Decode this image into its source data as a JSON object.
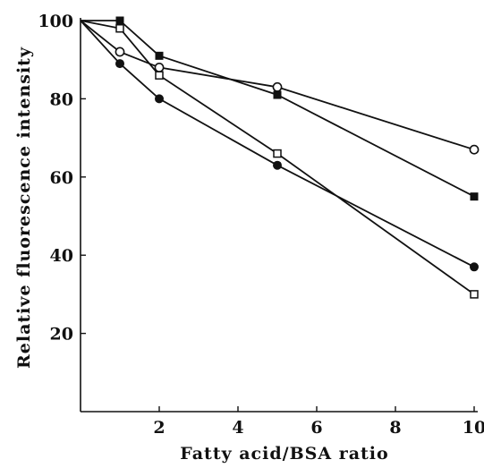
{
  "chart_data": {
    "type": "line",
    "title": "",
    "xlabel": "Fatty acid/BSA ratio",
    "ylabel": "Relative fluorescence intensity",
    "xlim": [
      0,
      10
    ],
    "ylim": [
      0,
      100
    ],
    "xticks": [
      2,
      4,
      6,
      8,
      10
    ],
    "yticks": [
      20,
      40,
      60,
      80,
      100
    ],
    "xtick_labels": [
      "2",
      "4",
      "6",
      "8",
      "10"
    ],
    "ytick_labels": [
      "20",
      "40",
      "60",
      "80",
      "100"
    ],
    "grid": false,
    "legend": "none",
    "series": [
      {
        "marker": "filled-square",
        "color": "#111111",
        "x": [
          0,
          1,
          2,
          5,
          10
        ],
        "y": [
          100,
          100,
          91,
          81,
          55
        ]
      },
      {
        "marker": "open-circle",
        "color": "#111111",
        "x": [
          0,
          1,
          2,
          5,
          10
        ],
        "y": [
          100,
          92,
          88,
          83,
          67
        ]
      },
      {
        "marker": "open-square",
        "color": "#111111",
        "x": [
          0,
          1,
          2,
          5,
          10
        ],
        "y": [
          100,
          98,
          86,
          66,
          30
        ]
      },
      {
        "marker": "filled-circle",
        "color": "#111111",
        "x": [
          0,
          1,
          2,
          5,
          10
        ],
        "y": [
          100,
          89,
          80,
          63,
          37
        ]
      }
    ]
  }
}
